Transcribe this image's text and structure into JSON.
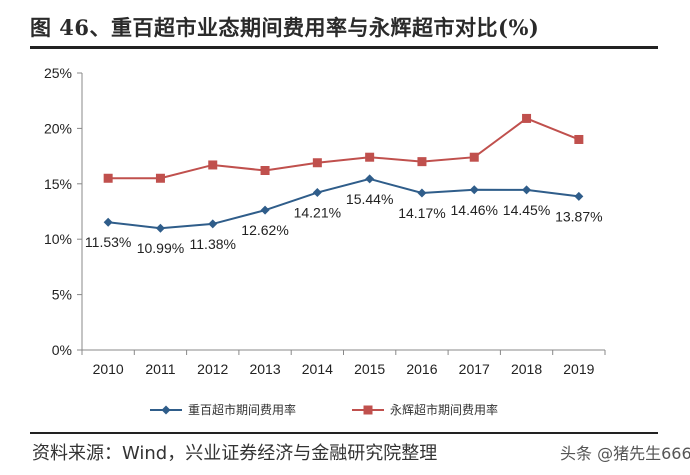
{
  "page": {
    "title": "图 46、重百超市业态期间费用率与永辉超市对比(%)",
    "source": "资料来源：Wind，兴业证券经济与金融研究院整理",
    "watermark": "头条 @猪先生666"
  },
  "chart_data": {
    "type": "line",
    "title": "",
    "xlabel": "",
    "ylabel": "",
    "x": [
      "2010",
      "2011",
      "2012",
      "2013",
      "2014",
      "2015",
      "2016",
      "2017",
      "2018",
      "2019"
    ],
    "ylim": [
      0,
      25
    ],
    "yticks": [
      "0%",
      "5%",
      "10%",
      "15%",
      "20%",
      "25%"
    ],
    "grid": false,
    "legend_position": "bottom",
    "series": [
      {
        "name": "重百超市期间费用率",
        "color": "#2f5d8a",
        "marker": "diamond",
        "values": [
          11.53,
          10.99,
          11.38,
          12.62,
          14.21,
          15.44,
          14.17,
          14.46,
          14.45,
          13.87
        ],
        "data_labels": [
          "11.53%",
          "10.99%",
          "11.38%",
          "12.62%",
          "14.21%",
          "15.44%",
          "14.17%",
          "14.46%",
          "14.45%",
          "13.87%"
        ]
      },
      {
        "name": "永辉超市期间费用率",
        "color": "#c0504d",
        "marker": "square",
        "values": [
          15.5,
          15.5,
          16.7,
          16.2,
          16.9,
          17.4,
          17.0,
          17.4,
          20.9,
          19.0
        ]
      }
    ]
  }
}
